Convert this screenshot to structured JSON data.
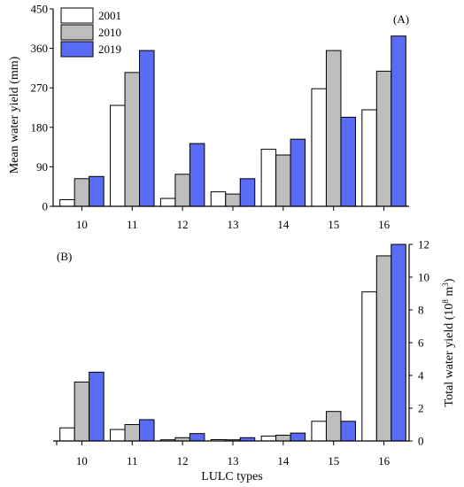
{
  "chart_data": [
    {
      "type": "bar",
      "panel_label": "(A)",
      "title": "",
      "categories": [
        "10",
        "11",
        "12",
        "13",
        "14",
        "15",
        "16"
      ],
      "series": [
        {
          "name": "2001",
          "color": "#ffffff",
          "values": [
            15,
            230,
            18,
            33,
            130,
            268,
            220
          ]
        },
        {
          "name": "2010",
          "color": "#bebebe",
          "values": [
            63,
            305,
            73,
            28,
            117,
            355,
            308
          ]
        },
        {
          "name": "2019",
          "color": "#5a6bf5",
          "values": [
            68,
            355,
            143,
            63,
            153,
            203,
            388
          ]
        }
      ],
      "xlabel": "",
      "ylabel": "Mean water yield (mm)",
      "ylim": [
        0,
        450
      ],
      "yticks": [
        "0",
        "90",
        "180",
        "270",
        "360",
        "450"
      ],
      "legend": "top-left",
      "grid": false
    },
    {
      "type": "bar",
      "panel_label": "(B)",
      "title": "",
      "categories": [
        "10",
        "11",
        "12",
        "13",
        "14",
        "15",
        "16"
      ],
      "series": [
        {
          "name": "2001",
          "color": "#ffffff",
          "values": [
            0.8,
            0.7,
            0.07,
            0.08,
            0.3,
            1.2,
            9.1
          ]
        },
        {
          "name": "2010",
          "color": "#bebebe",
          "values": [
            3.6,
            1.0,
            0.2,
            0.07,
            0.35,
            1.8,
            11.3
          ]
        },
        {
          "name": "2019",
          "color": "#5a6bf5",
          "values": [
            4.2,
            1.3,
            0.45,
            0.2,
            0.48,
            1.2,
            12.0
          ]
        }
      ],
      "xlabel": "LULC types",
      "ylabel_main": "Total water yield (10",
      "ylabel_sup": "8",
      "ylabel_unit": " m",
      "ylabel_unit_sup": "3",
      "ylabel_close": ")",
      "ylim": [
        0,
        12
      ],
      "yticks": [
        "0",
        "2",
        "4",
        "6",
        "8",
        "10",
        "12"
      ],
      "yaxis_side": "right",
      "grid": false
    }
  ]
}
